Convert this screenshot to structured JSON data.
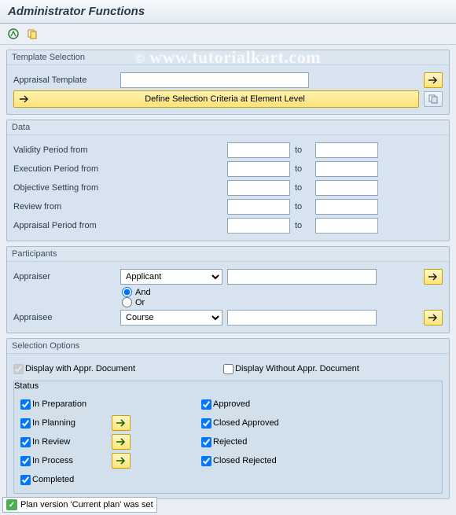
{
  "colors": {
    "panel": "#d7e4ef",
    "border": "#a9bdcf",
    "accent_bg": "#ffe37a",
    "accent_border": "#c9a400"
  },
  "title": "Administrator Functions",
  "watermark": "© www.tutorialkart.com",
  "groups": {
    "template": {
      "legend": "Template Selection",
      "appraisal_template_label": "Appraisal Template",
      "appraisal_template_value": "",
      "define_criteria_label": "Define Selection Criteria at Element Level"
    },
    "data": {
      "legend": "Data",
      "to_label": "to",
      "rows": [
        {
          "label": "Validity Period from",
          "from": "",
          "to": ""
        },
        {
          "label": "Execution Period from",
          "from": "",
          "to": ""
        },
        {
          "label": "Objective Setting from",
          "from": "",
          "to": ""
        },
        {
          "label": "Review from",
          "from": "",
          "to": ""
        },
        {
          "label": "Appraisal Period from",
          "from": "",
          "to": ""
        }
      ]
    },
    "participants": {
      "legend": "Participants",
      "appraiser_label": "Appraiser",
      "appraiser_type": "Applicant",
      "appraiser_value": "",
      "logic_and": "And",
      "logic_or": "Or",
      "logic_selected": "and",
      "appraisee_label": "Appraisee",
      "appraisee_type": "Course",
      "appraisee_value": ""
    },
    "selopts": {
      "legend": "Selection Options",
      "display_with_label": "Display with Appr. Document",
      "display_with_checked": true,
      "display_with_disabled": true,
      "display_without_label": "Display Without Appr. Document",
      "display_without_checked": false,
      "status_legend": "Status",
      "left": [
        {
          "label": "In Preparation",
          "checked": true,
          "btn": false
        },
        {
          "label": "In Planning",
          "checked": true,
          "btn": true
        },
        {
          "label": "In Review",
          "checked": true,
          "btn": true
        },
        {
          "label": "In Process",
          "checked": true,
          "btn": true
        },
        {
          "label": "Completed",
          "checked": true,
          "btn": false
        }
      ],
      "right": [
        {
          "label": "Approved",
          "checked": true
        },
        {
          "label": "Closed Approved",
          "checked": true
        },
        {
          "label": "Rejected",
          "checked": true
        },
        {
          "label": "Closed Rejected",
          "checked": true
        }
      ]
    }
  },
  "statusbar": "Plan version 'Current plan' was set"
}
